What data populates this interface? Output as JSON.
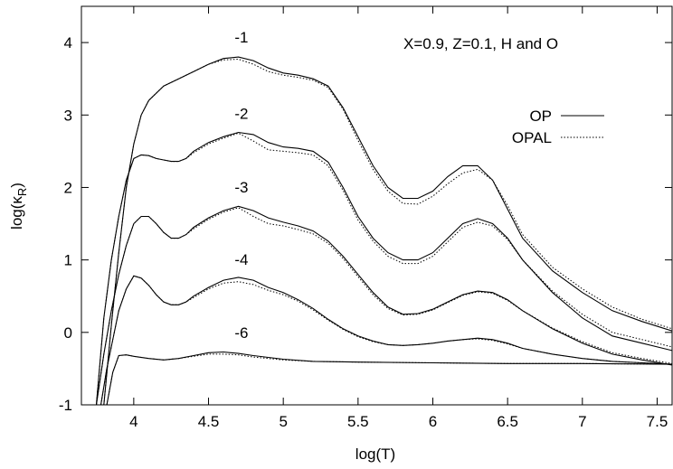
{
  "chart_data": {
    "type": "line",
    "title": "",
    "annotation": "X=0.9, Z=0.1, H and O",
    "xlabel": "log(T)",
    "ylabel_main": "log(κ",
    "ylabel_sub": "R",
    "ylabel_close": ")",
    "xlim": [
      3.65,
      7.6
    ],
    "ylim": [
      -1,
      4.5
    ],
    "xticks": [
      4,
      4.5,
      5,
      5.5,
      6,
      6.5,
      7,
      7.5
    ],
    "xtick_labels": [
      "4",
      "4.5",
      "5",
      "5.5",
      "6",
      "6.5",
      "7",
      "7.5"
    ],
    "yticks": [
      -1,
      0,
      1,
      2,
      3,
      4
    ],
    "ytick_labels": [
      "-1",
      "0",
      "1",
      "2",
      "3",
      "4"
    ],
    "grid": false,
    "legend_position": "top-right",
    "legend": [
      {
        "label": "OP",
        "style": "solid"
      },
      {
        "label": "OPAL",
        "style": "dotted"
      }
    ],
    "curve_labels": [
      {
        "text": "-1",
        "x": 4.72,
        "y": 4.0
      },
      {
        "text": "-2",
        "x": 4.72,
        "y": 2.95
      },
      {
        "text": "-3",
        "x": 4.72,
        "y": 1.93
      },
      {
        "text": "-4",
        "x": 4.72,
        "y": 0.93
      },
      {
        "text": "-6",
        "x": 4.72,
        "y": -0.08
      }
    ],
    "series": [
      {
        "group": "-1",
        "style": "solid",
        "x": [
          3.8,
          3.85,
          3.9,
          3.95,
          4.0,
          4.05,
          4.1,
          4.2,
          4.3,
          4.4,
          4.5,
          4.6,
          4.7,
          4.8,
          4.9,
          5.0,
          5.1,
          5.2,
          5.3,
          5.4,
          5.5,
          5.6,
          5.7,
          5.8,
          5.9,
          6.0,
          6.1,
          6.2,
          6.3,
          6.4,
          6.5,
          6.6,
          6.8,
          7.0,
          7.2,
          7.4,
          7.6
        ],
        "y": [
          -1.0,
          0.1,
          1.1,
          2.0,
          2.6,
          3.0,
          3.2,
          3.4,
          3.5,
          3.6,
          3.7,
          3.78,
          3.8,
          3.75,
          3.65,
          3.58,
          3.55,
          3.5,
          3.4,
          3.1,
          2.7,
          2.3,
          2.0,
          1.85,
          1.85,
          1.95,
          2.15,
          2.3,
          2.3,
          2.1,
          1.7,
          1.3,
          0.85,
          0.55,
          0.3,
          0.15,
          0.02
        ]
      },
      {
        "group": "-1",
        "style": "dotted",
        "x": [
          3.8,
          3.85,
          3.9,
          3.95,
          4.0,
          4.05,
          4.1,
          4.2,
          4.3,
          4.4,
          4.5,
          4.6,
          4.7,
          4.8,
          4.9,
          5.0,
          5.1,
          5.2,
          5.3,
          5.4,
          5.5,
          5.6,
          5.7,
          5.8,
          5.9,
          6.0,
          6.1,
          6.2,
          6.3,
          6.4,
          6.5,
          6.6,
          6.8,
          7.0,
          7.2,
          7.4,
          7.6
        ],
        "y": [
          -1.0,
          0.1,
          1.1,
          2.0,
          2.6,
          3.0,
          3.2,
          3.4,
          3.5,
          3.6,
          3.7,
          3.76,
          3.77,
          3.7,
          3.6,
          3.55,
          3.52,
          3.48,
          3.38,
          3.08,
          2.65,
          2.25,
          1.95,
          1.78,
          1.77,
          1.88,
          2.05,
          2.2,
          2.25,
          2.1,
          1.75,
          1.35,
          0.9,
          0.6,
          0.35,
          0.18,
          0.05
        ]
      },
      {
        "group": "-2",
        "style": "solid",
        "x": [
          3.75,
          3.8,
          3.85,
          3.9,
          3.95,
          4.0,
          4.05,
          4.1,
          4.15,
          4.2,
          4.25,
          4.3,
          4.35,
          4.4,
          4.5,
          4.6,
          4.7,
          4.8,
          4.9,
          5.0,
          5.1,
          5.2,
          5.3,
          5.4,
          5.5,
          5.6,
          5.7,
          5.8,
          5.9,
          6.0,
          6.1,
          6.2,
          6.3,
          6.4,
          6.5,
          6.6,
          6.8,
          7.0,
          7.2,
          7.4,
          7.6
        ],
        "y": [
          -1.0,
          0.2,
          1.0,
          1.6,
          2.1,
          2.4,
          2.45,
          2.44,
          2.4,
          2.38,
          2.36,
          2.36,
          2.4,
          2.5,
          2.62,
          2.7,
          2.76,
          2.73,
          2.62,
          2.56,
          2.54,
          2.5,
          2.35,
          2.0,
          1.6,
          1.3,
          1.1,
          1.0,
          1.0,
          1.1,
          1.3,
          1.5,
          1.57,
          1.5,
          1.3,
          1.0,
          0.55,
          0.2,
          -0.05,
          -0.15,
          -0.25
        ]
      },
      {
        "group": "-2",
        "style": "dotted",
        "x": [
          3.75,
          3.8,
          3.85,
          3.9,
          3.95,
          4.0,
          4.05,
          4.1,
          4.15,
          4.2,
          4.25,
          4.3,
          4.35,
          4.4,
          4.5,
          4.6,
          4.7,
          4.8,
          4.9,
          5.0,
          5.1,
          5.2,
          5.3,
          5.4,
          5.5,
          5.6,
          5.7,
          5.8,
          5.9,
          6.0,
          6.1,
          6.2,
          6.3,
          6.4,
          6.5,
          6.6,
          6.8,
          7.0,
          7.2,
          7.4,
          7.6
        ],
        "y": [
          -1.0,
          0.2,
          1.0,
          1.6,
          2.1,
          2.4,
          2.45,
          2.44,
          2.4,
          2.38,
          2.36,
          2.36,
          2.4,
          2.48,
          2.6,
          2.68,
          2.75,
          2.64,
          2.52,
          2.5,
          2.48,
          2.45,
          2.3,
          1.96,
          1.55,
          1.26,
          1.05,
          0.95,
          0.95,
          1.05,
          1.25,
          1.45,
          1.52,
          1.47,
          1.28,
          1.0,
          0.57,
          0.25,
          0.0,
          -0.1,
          -0.2
        ]
      },
      {
        "group": "-3",
        "style": "solid",
        "x": [
          3.75,
          3.8,
          3.85,
          3.9,
          3.95,
          4.0,
          4.05,
          4.1,
          4.15,
          4.2,
          4.25,
          4.3,
          4.35,
          4.4,
          4.5,
          4.6,
          4.7,
          4.8,
          4.9,
          5.0,
          5.1,
          5.2,
          5.3,
          5.4,
          5.5,
          5.6,
          5.7,
          5.8,
          5.9,
          6.0,
          6.1,
          6.2,
          6.3,
          6.4,
          6.5,
          6.6,
          6.8,
          7.0,
          7.2,
          7.4,
          7.6
        ],
        "y": [
          -1.0,
          -0.3,
          0.3,
          0.8,
          1.2,
          1.5,
          1.6,
          1.6,
          1.5,
          1.38,
          1.3,
          1.3,
          1.35,
          1.45,
          1.58,
          1.68,
          1.74,
          1.68,
          1.58,
          1.52,
          1.47,
          1.4,
          1.26,
          1.05,
          0.8,
          0.55,
          0.35,
          0.25,
          0.26,
          0.32,
          0.42,
          0.52,
          0.57,
          0.55,
          0.45,
          0.3,
          0.05,
          -0.15,
          -0.3,
          -0.38,
          -0.45
        ]
      },
      {
        "group": "-3",
        "style": "dotted",
        "x": [
          3.75,
          3.8,
          3.85,
          3.9,
          3.95,
          4.0,
          4.05,
          4.1,
          4.15,
          4.2,
          4.25,
          4.3,
          4.35,
          4.4,
          4.5,
          4.6,
          4.7,
          4.8,
          4.9,
          5.0,
          5.1,
          5.2,
          5.3,
          5.4,
          5.5,
          5.6,
          5.7,
          5.8,
          5.9,
          6.0,
          6.1,
          6.2,
          6.3,
          6.4,
          6.5,
          6.6,
          6.8,
          7.0,
          7.2,
          7.4,
          7.6
        ],
        "y": [
          -1.0,
          -0.3,
          0.3,
          0.8,
          1.2,
          1.5,
          1.6,
          1.6,
          1.5,
          1.38,
          1.3,
          1.3,
          1.35,
          1.43,
          1.56,
          1.66,
          1.72,
          1.6,
          1.5,
          1.47,
          1.42,
          1.36,
          1.23,
          1.02,
          0.77,
          0.52,
          0.33,
          0.24,
          0.25,
          0.31,
          0.41,
          0.51,
          0.56,
          0.54,
          0.44,
          0.3,
          0.06,
          -0.13,
          -0.28,
          -0.36,
          -0.43
        ]
      },
      {
        "group": "-4",
        "style": "solid",
        "x": [
          3.78,
          3.82,
          3.86,
          3.9,
          3.95,
          4.0,
          4.05,
          4.1,
          4.15,
          4.2,
          4.25,
          4.3,
          4.35,
          4.4,
          4.5,
          4.6,
          4.7,
          4.8,
          4.9,
          5.0,
          5.1,
          5.2,
          5.3,
          5.4,
          5.5,
          5.6,
          5.7,
          5.8,
          5.9,
          6.0,
          6.1,
          6.2,
          6.3,
          6.4,
          6.5,
          6.6,
          6.8,
          7.0,
          7.2,
          7.4,
          7.6
        ],
        "y": [
          -1.0,
          -0.5,
          -0.1,
          0.3,
          0.6,
          0.78,
          0.75,
          0.65,
          0.52,
          0.42,
          0.38,
          0.38,
          0.42,
          0.5,
          0.62,
          0.72,
          0.76,
          0.72,
          0.62,
          0.55,
          0.45,
          0.33,
          0.18,
          0.05,
          -0.05,
          -0.12,
          -0.17,
          -0.18,
          -0.17,
          -0.15,
          -0.12,
          -0.1,
          -0.08,
          -0.1,
          -0.15,
          -0.22,
          -0.3,
          -0.36,
          -0.4,
          -0.42,
          -0.44
        ]
      },
      {
        "group": "-4",
        "style": "dotted",
        "x": [
          3.78,
          3.82,
          3.86,
          3.9,
          3.95,
          4.0,
          4.05,
          4.1,
          4.15,
          4.2,
          4.25,
          4.3,
          4.35,
          4.4,
          4.5,
          4.6,
          4.7,
          4.8,
          4.9,
          5.0,
          5.1,
          5.2,
          5.3,
          5.4,
          5.5,
          5.6,
          5.7,
          5.8,
          5.9,
          6.0,
          6.1,
          6.2,
          6.3,
          6.4,
          6.5,
          6.6,
          6.8,
          7.0,
          7.2,
          7.4,
          7.6
        ],
        "y": [
          -1.0,
          -0.5,
          -0.1,
          0.3,
          0.6,
          0.78,
          0.75,
          0.65,
          0.52,
          0.42,
          0.38,
          0.38,
          0.42,
          0.48,
          0.6,
          0.68,
          0.7,
          0.66,
          0.58,
          0.52,
          0.43,
          0.31,
          0.17,
          0.04,
          -0.06,
          -0.13,
          -0.17,
          -0.18,
          -0.17,
          -0.15,
          -0.12,
          -0.1,
          -0.09,
          -0.11,
          -0.16,
          -0.22,
          -0.3,
          -0.36,
          -0.4,
          -0.42,
          -0.44
        ]
      },
      {
        "group": "-6",
        "style": "solid",
        "x": [
          3.82,
          3.86,
          3.9,
          3.95,
          4.0,
          4.1,
          4.2,
          4.3,
          4.4,
          4.5,
          4.6,
          4.7,
          4.8,
          5.0,
          5.2,
          5.5,
          6.0,
          6.5,
          7.0,
          7.6
        ],
        "y": [
          -1.0,
          -0.55,
          -0.32,
          -0.31,
          -0.33,
          -0.36,
          -0.38,
          -0.36,
          -0.32,
          -0.28,
          -0.27,
          -0.29,
          -0.32,
          -0.37,
          -0.4,
          -0.41,
          -0.42,
          -0.43,
          -0.43,
          -0.44
        ]
      },
      {
        "group": "-6",
        "style": "dotted",
        "x": [
          3.82,
          3.86,
          3.9,
          3.95,
          4.0,
          4.1,
          4.2,
          4.3,
          4.4,
          4.5,
          4.6,
          4.7,
          4.8,
          5.0,
          5.2,
          5.5,
          6.0,
          6.5,
          7.0,
          7.6
        ],
        "y": [
          -1.0,
          -0.55,
          -0.32,
          -0.31,
          -0.33,
          -0.36,
          -0.38,
          -0.36,
          -0.33,
          -0.3,
          -0.3,
          -0.31,
          -0.34,
          -0.38,
          -0.4,
          -0.41,
          -0.42,
          -0.43,
          -0.43,
          -0.44
        ]
      }
    ]
  }
}
